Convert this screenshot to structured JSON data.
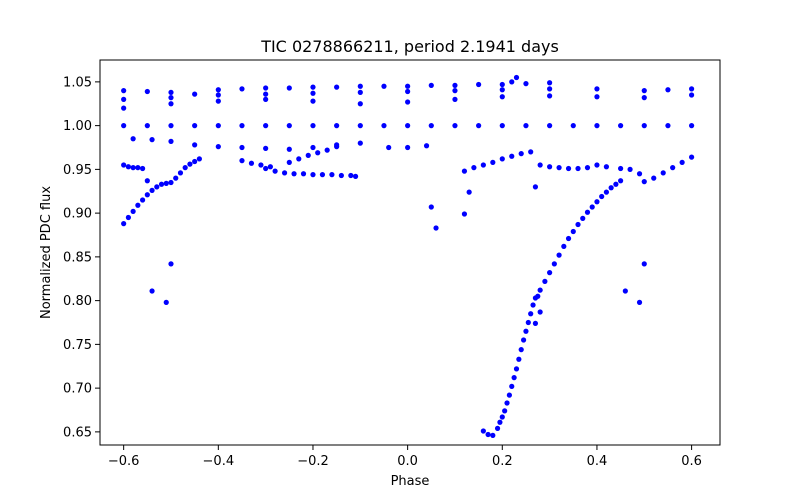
{
  "chart_data": {
    "type": "scatter",
    "title": "TIC 0278866211, period 2.1941 days",
    "xlabel": "Phase",
    "ylabel": "Normalized PDC flux",
    "xlim": [
      -0.65,
      0.66
    ],
    "ylim": [
      0.635,
      1.075
    ],
    "grid": false,
    "marker_color": "#0000ff",
    "x_ticks": [
      -0.6,
      -0.4,
      -0.2,
      0.0,
      0.2,
      0.4,
      0.6
    ],
    "x_tick_labels": [
      "−0.6",
      "−0.4",
      "−0.2",
      "0.0",
      "0.2",
      "0.4",
      "0.6"
    ],
    "y_ticks": [
      0.65,
      0.7,
      0.75,
      0.8,
      0.85,
      0.9,
      0.95,
      1.0,
      1.05
    ],
    "y_tick_labels": [
      "0.65",
      "0.70",
      "0.75",
      "0.80",
      "0.85",
      "0.90",
      "0.95",
      "1.00",
      "1.05"
    ],
    "series": [
      {
        "points": [
          [
            -0.6,
            0.888
          ],
          [
            -0.59,
            0.895
          ],
          [
            -0.58,
            0.902
          ],
          [
            -0.57,
            0.909
          ],
          [
            -0.56,
            0.915
          ],
          [
            -0.55,
            0.921
          ],
          [
            -0.54,
            0.926
          ],
          [
            -0.53,
            0.93
          ],
          [
            -0.52,
            0.933
          ],
          [
            -0.51,
            0.934
          ],
          [
            -0.5,
            0.935
          ],
          [
            -0.49,
            0.94
          ],
          [
            -0.48,
            0.946
          ],
          [
            -0.47,
            0.952
          ],
          [
            -0.46,
            0.956
          ],
          [
            -0.45,
            0.959
          ],
          [
            -0.44,
            0.962
          ],
          [
            -0.6,
            0.955
          ],
          [
            -0.59,
            0.953
          ],
          [
            -0.58,
            0.952
          ],
          [
            -0.57,
            0.952
          ],
          [
            -0.56,
            0.951
          ],
          [
            -0.55,
            0.937
          ],
          [
            -0.54,
            0.811
          ],
          [
            -0.51,
            0.798
          ],
          [
            -0.5,
            0.842
          ],
          [
            -0.35,
            0.96
          ],
          [
            -0.33,
            0.957
          ],
          [
            -0.31,
            0.955
          ],
          [
            -0.29,
            0.953
          ],
          [
            -0.3,
            0.951
          ],
          [
            -0.28,
            0.948
          ],
          [
            -0.26,
            0.946
          ],
          [
            -0.24,
            0.945
          ],
          [
            -0.22,
            0.945
          ],
          [
            -0.2,
            0.944
          ],
          [
            -0.18,
            0.944
          ],
          [
            -0.16,
            0.944
          ],
          [
            -0.14,
            0.943
          ],
          [
            -0.12,
            0.943
          ],
          [
            -0.11,
            0.942
          ],
          [
            -0.25,
            0.958
          ],
          [
            -0.23,
            0.962
          ],
          [
            -0.21,
            0.966
          ],
          [
            -0.19,
            0.969
          ],
          [
            -0.17,
            0.972
          ],
          [
            -0.15,
            0.976
          ],
          [
            -0.6,
            1.04
          ],
          [
            -0.55,
            1.039
          ],
          [
            -0.5,
            1.038
          ],
          [
            -0.45,
            1.036
          ],
          [
            -0.4,
            1.041
          ],
          [
            -0.35,
            1.042
          ],
          [
            -0.3,
            1.043
          ],
          [
            -0.25,
            1.043
          ],
          [
            -0.2,
            1.044
          ],
          [
            -0.15,
            1.044
          ],
          [
            -0.1,
            1.045
          ],
          [
            -0.05,
            1.045
          ],
          [
            0.0,
            1.045
          ],
          [
            0.05,
            1.046
          ],
          [
            0.1,
            1.046
          ],
          [
            0.15,
            1.047
          ],
          [
            0.2,
            1.047
          ],
          [
            0.25,
            1.048
          ],
          [
            0.3,
            1.049
          ],
          [
            0.23,
            1.055
          ],
          [
            0.22,
            1.05
          ],
          [
            -0.6,
            1.03
          ],
          [
            -0.5,
            1.032
          ],
          [
            -0.4,
            1.035
          ],
          [
            -0.3,
            1.036
          ],
          [
            -0.2,
            1.037
          ],
          [
            -0.1,
            1.038
          ],
          [
            0.0,
            1.039
          ],
          [
            0.1,
            1.04
          ],
          [
            0.2,
            1.041
          ],
          [
            0.3,
            1.042
          ],
          [
            0.4,
            1.042
          ],
          [
            0.5,
            1.04
          ],
          [
            0.55,
            1.041
          ],
          [
            0.6,
            1.042
          ],
          [
            -0.6,
            1.02
          ],
          [
            -0.5,
            1.025
          ],
          [
            -0.4,
            1.028
          ],
          [
            -0.3,
            1.03
          ],
          [
            -0.2,
            1.028
          ],
          [
            -0.1,
            1.025
          ],
          [
            0.0,
            1.027
          ],
          [
            0.1,
            1.03
          ],
          [
            0.2,
            1.033
          ],
          [
            0.3,
            1.034
          ],
          [
            0.4,
            1.033
          ],
          [
            0.5,
            1.032
          ],
          [
            0.6,
            1.035
          ],
          [
            -0.58,
            0.985
          ],
          [
            -0.54,
            0.984
          ],
          [
            -0.5,
            0.982
          ],
          [
            -0.45,
            0.978
          ],
          [
            -0.4,
            0.976
          ],
          [
            -0.35,
            0.975
          ],
          [
            -0.3,
            0.974
          ],
          [
            -0.25,
            0.973
          ],
          [
            -0.2,
            0.975
          ],
          [
            -0.15,
            0.978
          ],
          [
            -0.1,
            0.98
          ],
          [
            -0.04,
            0.975
          ],
          [
            0.0,
            0.975
          ],
          [
            0.04,
            0.977
          ],
          [
            0.12,
            0.948
          ],
          [
            0.14,
            0.952
          ],
          [
            0.16,
            0.955
          ],
          [
            0.18,
            0.958
          ],
          [
            0.2,
            0.962
          ],
          [
            0.22,
            0.965
          ],
          [
            0.24,
            0.968
          ],
          [
            0.26,
            0.97
          ],
          [
            0.28,
            0.955
          ],
          [
            0.3,
            0.953
          ],
          [
            0.32,
            0.952
          ],
          [
            0.34,
            0.951
          ],
          [
            0.36,
            0.951
          ],
          [
            0.38,
            0.952
          ],
          [
            0.05,
            0.907
          ],
          [
            0.06,
            0.883
          ],
          [
            0.12,
            0.899
          ],
          [
            0.13,
            0.924
          ],
          [
            0.27,
            0.93
          ],
          [
            0.4,
            0.955
          ],
          [
            0.42,
            0.953
          ],
          [
            0.45,
            0.951
          ],
          [
            0.47,
            0.95
          ],
          [
            0.49,
            0.945
          ],
          [
            0.5,
            0.936
          ],
          [
            0.45,
            0.937
          ],
          [
            0.52,
            0.94
          ],
          [
            0.54,
            0.946
          ],
          [
            0.56,
            0.952
          ],
          [
            0.58,
            0.958
          ],
          [
            0.6,
            0.964
          ],
          [
            0.46,
            0.811
          ],
          [
            0.49,
            0.798
          ],
          [
            0.5,
            0.842
          ],
          [
            0.16,
            0.651
          ],
          [
            0.17,
            0.647
          ],
          [
            0.18,
            0.646
          ],
          [
            0.19,
            0.654
          ],
          [
            0.195,
            0.661
          ],
          [
            0.2,
            0.667
          ],
          [
            0.205,
            0.674
          ],
          [
            0.21,
            0.683
          ],
          [
            0.215,
            0.692
          ],
          [
            0.22,
            0.702
          ],
          [
            0.225,
            0.712
          ],
          [
            0.23,
            0.722
          ],
          [
            0.235,
            0.733
          ],
          [
            0.24,
            0.744
          ],
          [
            0.245,
            0.755
          ],
          [
            0.25,
            0.765
          ],
          [
            0.255,
            0.775
          ],
          [
            0.26,
            0.785
          ],
          [
            0.265,
            0.795
          ],
          [
            0.27,
            0.803
          ],
          [
            0.275,
            0.805
          ],
          [
            0.28,
            0.812
          ],
          [
            0.29,
            0.822
          ],
          [
            0.3,
            0.832
          ],
          [
            0.31,
            0.842
          ],
          [
            0.32,
            0.852
          ],
          [
            0.33,
            0.862
          ],
          [
            0.34,
            0.871
          ],
          [
            0.35,
            0.879
          ],
          [
            0.36,
            0.887
          ],
          [
            0.37,
            0.894
          ],
          [
            0.38,
            0.901
          ],
          [
            0.39,
            0.907
          ],
          [
            0.4,
            0.913
          ],
          [
            0.41,
            0.919
          ],
          [
            0.42,
            0.924
          ],
          [
            0.43,
            0.929
          ],
          [
            0.44,
            0.933
          ],
          [
            0.28,
            0.787
          ],
          [
            0.27,
            0.774
          ],
          [
            -0.6,
            1.0
          ],
          [
            -0.55,
            1.0
          ],
          [
            -0.5,
            1.0
          ],
          [
            -0.45,
            1.0
          ],
          [
            -0.4,
            1.0
          ],
          [
            -0.35,
            1.0
          ],
          [
            -0.3,
            1.0
          ],
          [
            -0.25,
            1.0
          ],
          [
            -0.2,
            1.0
          ],
          [
            -0.15,
            1.0
          ],
          [
            -0.1,
            1.0
          ],
          [
            -0.05,
            1.0
          ],
          [
            0.0,
            1.0
          ],
          [
            0.05,
            1.0
          ],
          [
            0.1,
            1.0
          ],
          [
            0.15,
            1.0
          ],
          [
            0.2,
            1.0
          ],
          [
            0.25,
            1.0
          ],
          [
            0.3,
            1.0
          ],
          [
            0.35,
            1.0
          ],
          [
            0.4,
            1.0
          ],
          [
            0.45,
            1.0
          ],
          [
            0.5,
            1.0
          ],
          [
            0.55,
            1.0
          ],
          [
            0.6,
            1.0
          ]
        ]
      }
    ]
  }
}
